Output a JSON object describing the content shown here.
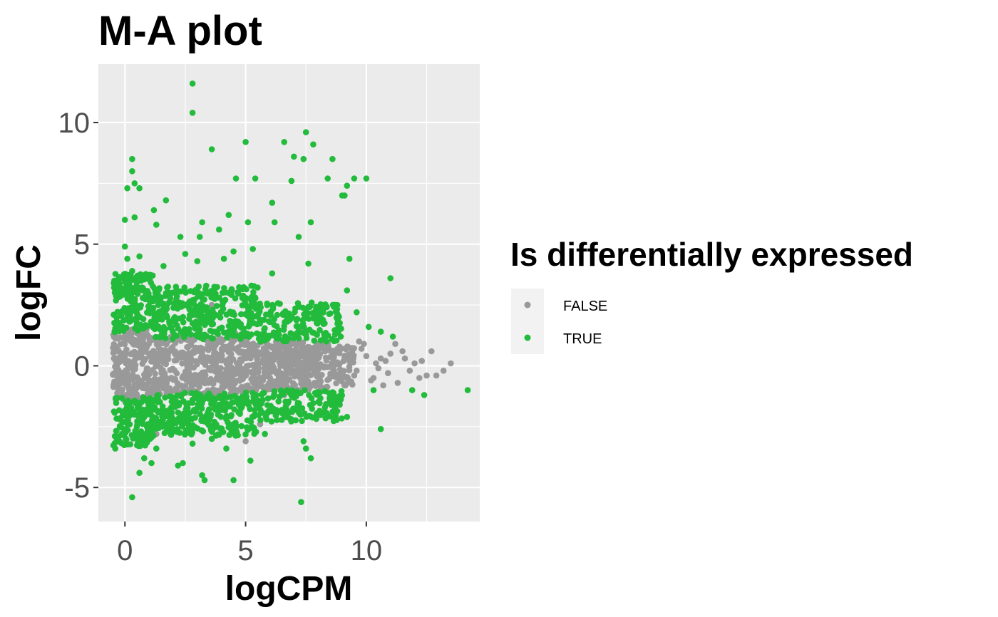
{
  "chart_data": {
    "type": "scatter",
    "title": "M-A plot",
    "xlabel": "logCPM",
    "ylabel": "logFC",
    "xlim": [
      -1.1,
      14.7
    ],
    "ylim": [
      -6.4,
      12.4
    ],
    "x_ticks": [
      0,
      5,
      10
    ],
    "y_ticks": [
      -5,
      0,
      5,
      10
    ],
    "grid": true,
    "legend": {
      "title": "Is differentially expressed",
      "position": "right",
      "entries": [
        {
          "label": "FALSE",
          "color": "#999999"
        },
        {
          "label": "TRUE",
          "color": "#22BB3B"
        }
      ]
    },
    "series": [
      {
        "name": "FALSE",
        "color": "#999999",
        "points": [
          [
            10.6,
            0.3
          ],
          [
            10.9,
            -0.3
          ],
          [
            11.2,
            0.9
          ],
          [
            11.5,
            0.6
          ],
          [
            11.8,
            -0.2
          ],
          [
            12.0,
            0.1
          ],
          [
            12.3,
            0.2
          ],
          [
            12.5,
            -0.4
          ],
          [
            12.9,
            -0.4
          ],
          [
            13.2,
            -0.2
          ],
          [
            13.5,
            0.1
          ],
          [
            12.7,
            0.6
          ],
          [
            11.3,
            -0.7
          ],
          [
            10.8,
            0.2
          ],
          [
            10.2,
            -0.6
          ],
          [
            9.8,
            0.7
          ],
          [
            9.5,
            -0.4
          ],
          [
            9.7,
            1.0
          ],
          [
            9.9,
            0.9
          ],
          [
            10.4,
            0.1
          ],
          [
            10.3,
            -0.5
          ],
          [
            9.3,
            0.4
          ],
          [
            9.1,
            -0.8
          ],
          [
            10.7,
            -0.8
          ],
          [
            11.6,
            0.3
          ],
          [
            12.2,
            -0.5
          ],
          [
            11.0,
            0.5
          ],
          [
            10.5,
            -0.1
          ],
          [
            10.0,
            0.4
          ],
          [
            9.6,
            -0.2
          ],
          [
            1.3,
            -2.8
          ],
          [
            5.0,
            -3.1
          ],
          [
            0.6,
            1.7
          ],
          [
            1.7,
            2.4
          ],
          [
            2.6,
            -2.0
          ],
          [
            3.1,
            1.9
          ],
          [
            0.1,
            -1.7
          ],
          [
            3.6,
            2.5
          ],
          [
            4.9,
            1.5
          ],
          [
            6.6,
            -1.2
          ],
          [
            7.3,
            1.4
          ],
          [
            1.0,
            -2.5
          ],
          [
            5.6,
            -2.4
          ],
          [
            4.6,
            1.3
          ]
        ],
        "bands": [
          {
            "x_range": [
              -0.5,
              1.0
            ],
            "y_range": [
              -1.5,
              1.5
            ],
            "n": 230
          },
          {
            "x_range": [
              1.0,
              5.0
            ],
            "y_range": [
              -1.2,
              1.2
            ],
            "n": 440
          },
          {
            "x_range": [
              5.0,
              8.5
            ],
            "y_range": [
              -1.0,
              1.0
            ],
            "n": 380
          },
          {
            "x_range": [
              8.5,
              9.5
            ],
            "y_range": [
              -0.8,
              0.8
            ],
            "n": 80
          }
        ]
      },
      {
        "name": "TRUE",
        "color": "#22BB3B",
        "points": [
          [
            2.8,
            11.6
          ],
          [
            2.8,
            10.4
          ],
          [
            7.5,
            9.6
          ],
          [
            6.6,
            9.2
          ],
          [
            7.8,
            9.1
          ],
          [
            5.0,
            9.2
          ],
          [
            3.6,
            8.9
          ],
          [
            7.0,
            8.6
          ],
          [
            7.4,
            8.5
          ],
          [
            8.6,
            8.5
          ],
          [
            0.3,
            8.5
          ],
          [
            0.3,
            8.0
          ],
          [
            0.4,
            7.5
          ],
          [
            0.1,
            7.3
          ],
          [
            0.6,
            7.3
          ],
          [
            1.7,
            6.8
          ],
          [
            4.6,
            7.7
          ],
          [
            5.4,
            7.7
          ],
          [
            6.9,
            7.6
          ],
          [
            8.4,
            7.7
          ],
          [
            9.5,
            7.7
          ],
          [
            10.0,
            7.7
          ],
          [
            9.2,
            7.4
          ],
          [
            9.0,
            7.0
          ],
          [
            9.1,
            7.0
          ],
          [
            6.1,
            6.7
          ],
          [
            4.3,
            6.2
          ],
          [
            3.2,
            5.9
          ],
          [
            3.9,
            5.6
          ],
          [
            7.7,
            5.9
          ],
          [
            6.2,
            5.9
          ],
          [
            5.1,
            5.9
          ],
          [
            1.2,
            6.4
          ],
          [
            0.4,
            6.1
          ],
          [
            0.0,
            6.0
          ],
          [
            1.3,
            5.8
          ],
          [
            2.3,
            5.3
          ],
          [
            7.2,
            5.3
          ],
          [
            3.1,
            5.3
          ],
          [
            0.0,
            4.9
          ],
          [
            0.1,
            4.4
          ],
          [
            0.6,
            4.5
          ],
          [
            1.6,
            4.1
          ],
          [
            2.5,
            4.6
          ],
          [
            3.0,
            4.3
          ],
          [
            4.1,
            4.4
          ],
          [
            4.5,
            4.7
          ],
          [
            5.3,
            4.8
          ],
          [
            6.1,
            3.8
          ],
          [
            7.6,
            4.2
          ],
          [
            9.3,
            4.4
          ],
          [
            0.3,
            3.9
          ],
          [
            11.0,
            3.6
          ],
          [
            9.2,
            3.1
          ],
          [
            8.8,
            2.5
          ],
          [
            10.6,
            1.4
          ],
          [
            11.1,
            1.2
          ],
          [
            10.1,
            1.6
          ],
          [
            9.6,
            2.2
          ],
          [
            -0.4,
            -3.4
          ],
          [
            0.3,
            -5.4
          ],
          [
            0.6,
            -4.4
          ],
          [
            7.3,
            -5.6
          ],
          [
            3.2,
            -4.5
          ],
          [
            4.5,
            -4.7
          ],
          [
            3.3,
            -4.7
          ],
          [
            7.7,
            -3.8
          ],
          [
            7.5,
            -3.4
          ],
          [
            7.4,
            -3.1
          ],
          [
            5.2,
            -3.9
          ],
          [
            2.2,
            -4.1
          ],
          [
            2.4,
            -4.0
          ],
          [
            1.1,
            -4.0
          ],
          [
            1.3,
            -3.4
          ],
          [
            10.6,
            -2.6
          ],
          [
            12.4,
            -1.2
          ],
          [
            14.2,
            -1.0
          ],
          [
            9.2,
            -2.1
          ],
          [
            8.9,
            -1.6
          ],
          [
            11.9,
            -1.0
          ],
          [
            10.3,
            -1.0
          ],
          [
            6.9,
            -2.2
          ],
          [
            4.2,
            -3.4
          ],
          [
            5.8,
            -2.8
          ],
          [
            3.6,
            -3.0
          ],
          [
            0.8,
            -3.8
          ],
          [
            2.8,
            -3.2
          ]
        ],
        "bands": [
          {
            "x_range": [
              -0.5,
              1.2
            ],
            "y_range": [
              1.3,
              3.8
            ],
            "n": 170
          },
          {
            "x_range": [
              1.2,
              5.5
            ],
            "y_range": [
              1.1,
              3.3
            ],
            "n": 320
          },
          {
            "x_range": [
              5.5,
              9.0
            ],
            "y_range": [
              1.0,
              2.6
            ],
            "n": 170
          },
          {
            "x_range": [
              -0.5,
              1.2
            ],
            "y_range": [
              -3.3,
              -1.3
            ],
            "n": 150
          },
          {
            "x_range": [
              1.2,
              5.5
            ],
            "y_range": [
              -2.9,
              -1.1
            ],
            "n": 280
          },
          {
            "x_range": [
              5.5,
              9.0
            ],
            "y_range": [
              -2.3,
              -1.0
            ],
            "n": 150
          }
        ]
      }
    ]
  }
}
